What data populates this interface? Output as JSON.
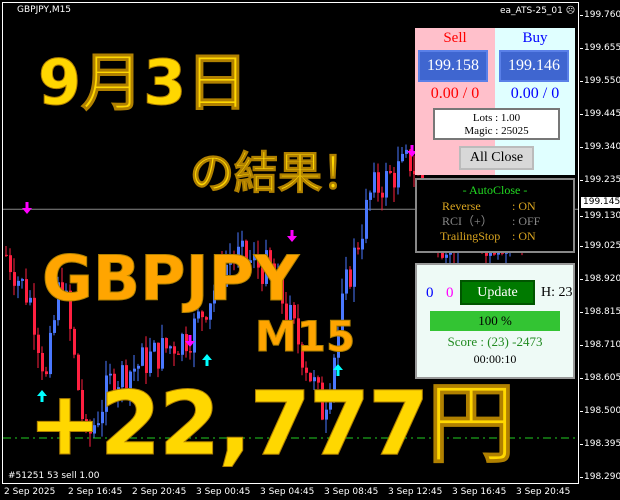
{
  "chart": {
    "symbol": "GBPJPY,M15",
    "ea_name": "ea_ATS-25_01",
    "ea_icon": "frown-face-icon",
    "price_ticks": [
      "199.760",
      "199.655",
      "199.550",
      "199.445",
      "199.340",
      "199.235",
      "199.130",
      "199.025",
      "198.920",
      "198.815",
      "198.710",
      "198.605",
      "198.500",
      "198.395",
      "198.290"
    ],
    "current_price": "199.145",
    "time_ticks": [
      "2 Sep 2025",
      "2 Sep 16:45",
      "2 Sep 20:45",
      "3 Sep 00:45",
      "3 Sep 04:45",
      "3 Sep 08:45",
      "3 Sep 12:45",
      "3 Sep 16:45",
      "3 Sep 20:45"
    ],
    "order_label": "#51251  53 sell 1.00",
    "colors": {
      "bull": "#4a78ff",
      "bear": "#ff2040",
      "buy_arrow": "#00ffff",
      "sell_arrow": "#ff00ff",
      "order_line": "#22cc22"
    }
  },
  "overlay": {
    "date": "9月3日",
    "result": "の結果！",
    "pair": "GBPJPY",
    "timeframe": "M15",
    "profit": "+22,777円"
  },
  "panel": {
    "sell_label": "Sell",
    "buy_label": "Buy",
    "sell_price": "199.158",
    "buy_price": "199.146",
    "sell_pl": "0.00 / 0",
    "buy_pl": "0.00 / 0",
    "lots": "Lots   : 1.00",
    "magic": "Magic : 25025",
    "all_close": "All Close"
  },
  "autoclose": {
    "title": "- AutoClose -",
    "rows": [
      {
        "label": "Reverse",
        "value": ": ON"
      },
      {
        "label": "RCI（+）",
        "value": ": OFF"
      },
      {
        "label": "TrailingStop",
        "value": ": ON"
      }
    ]
  },
  "status": {
    "count_blue": "0",
    "count_magenta": "0",
    "update": "Update",
    "hours": "H: 23",
    "progress_label": "100 %",
    "progress": 100,
    "score": "Score : (23) -2473",
    "timer": "00:00:10"
  }
}
